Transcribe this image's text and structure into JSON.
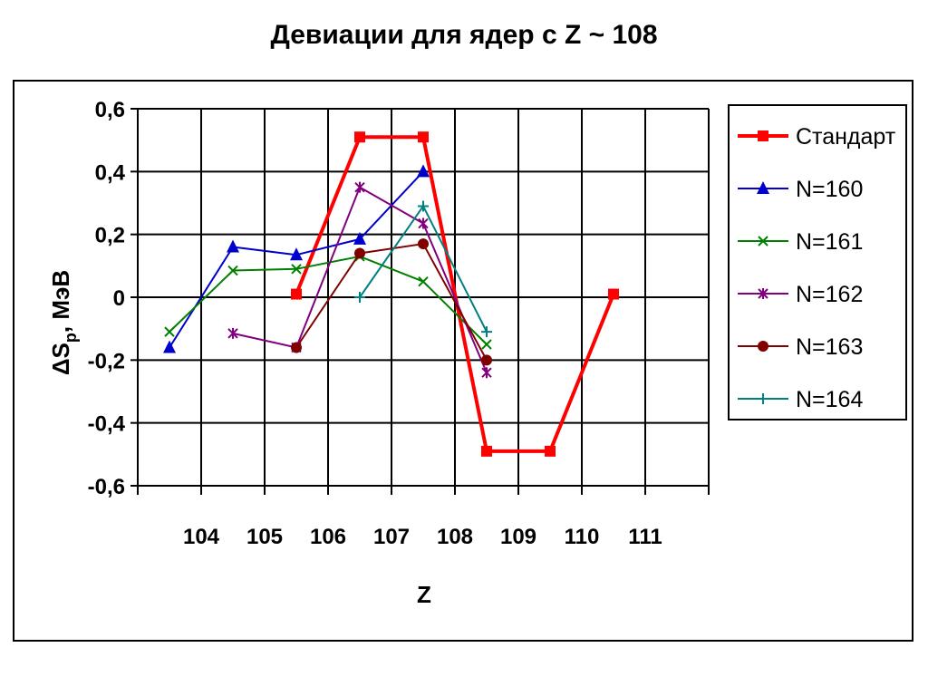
{
  "chart_data": {
    "type": "line",
    "title": "Девиации для ядер с Z ~ 108",
    "xlabel": "Z",
    "ylabel_main": "ΔS",
    "ylabel_sub": "p",
    "ylabel_rest": ", МэВ",
    "categories": [
      "104",
      "105",
      "106",
      "107",
      "108",
      "109",
      "110",
      "111"
    ],
    "ylim": [
      -0.6,
      0.6
    ],
    "yticks": [
      0.6,
      0.4,
      0.2,
      0,
      -0.2,
      -0.4,
      -0.6
    ],
    "ytick_labels": [
      "0,6",
      "0,4",
      "0,2",
      "0",
      "-0,2",
      "-0,4",
      "-0,6"
    ],
    "grid": true,
    "legend_position": "right",
    "series": [
      {
        "name": "Стандарт",
        "color": "#ff0000",
        "marker": "square",
        "width": 4,
        "x": [
          106,
          107,
          108,
          109,
          110,
          111
        ],
        "y": [
          0.01,
          0.51,
          0.51,
          -0.49,
          -0.49,
          0.01
        ]
      },
      {
        "name": "N=160",
        "color": "#0000cc",
        "marker": "triangle",
        "width": 2,
        "x": [
          104,
          105,
          106,
          107,
          108
        ],
        "y": [
          -0.16,
          0.16,
          0.135,
          0.185,
          0.4
        ]
      },
      {
        "name": "N=161",
        "color": "#008000",
        "marker": "x",
        "width": 2,
        "x": [
          104,
          105,
          106,
          107,
          108,
          109
        ],
        "y": [
          -0.11,
          0.085,
          0.09,
          0.13,
          0.05,
          -0.15
        ]
      },
      {
        "name": "N=162",
        "color": "#800080",
        "marker": "star",
        "width": 2,
        "x": [
          105,
          106,
          107,
          108,
          109
        ],
        "y": [
          -0.115,
          -0.16,
          0.35,
          0.235,
          -0.24
        ]
      },
      {
        "name": "N=163",
        "color": "#800000",
        "marker": "circle",
        "width": 2,
        "x": [
          106,
          107,
          108,
          109
        ],
        "y": [
          -0.16,
          0.14,
          0.17,
          -0.2
        ]
      },
      {
        "name": "N=164",
        "color": "#008080",
        "marker": "plus",
        "width": 2,
        "x": [
          107,
          108,
          109
        ],
        "y": [
          0.0,
          0.29,
          -0.11
        ]
      }
    ]
  }
}
